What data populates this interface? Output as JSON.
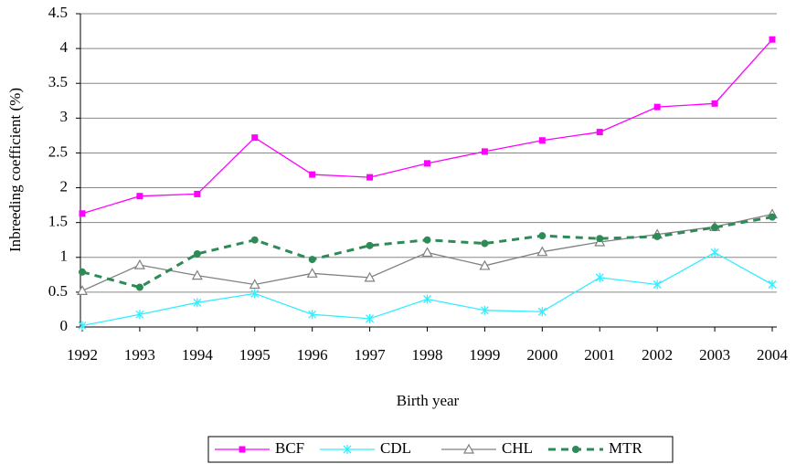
{
  "chart_data": {
    "type": "line",
    "x_label": "Birth year",
    "y_label": "Inbreeding coefficient (%)",
    "categories": [
      "1992",
      "1993",
      "1994",
      "1995",
      "1996",
      "1997",
      "1998",
      "1999",
      "2000",
      "2001",
      "2002",
      "2003",
      "2004"
    ],
    "ylim": [
      0,
      4.5
    ],
    "yticks": [
      0,
      0.5,
      1,
      1.5,
      2,
      2.5,
      3,
      3.5,
      4,
      4.5
    ],
    "grid": true,
    "legend": "bottom",
    "series": [
      {
        "name": "BCF",
        "color": "#ff00ff",
        "marker": "square",
        "dashed": false,
        "values": [
          1.63,
          1.88,
          1.91,
          2.72,
          2.19,
          2.15,
          2.35,
          2.52,
          2.68,
          2.8,
          3.16,
          3.21,
          4.13
        ]
      },
      {
        "name": "CDL",
        "color": "#33eeff",
        "marker": "asterisk",
        "dashed": false,
        "values": [
          0.02,
          0.18,
          0.35,
          0.48,
          0.18,
          0.12,
          0.4,
          0.24,
          0.22,
          0.71,
          0.61,
          1.07,
          0.61
        ]
      },
      {
        "name": "CHL",
        "color": "#808080",
        "marker": "triangle",
        "dashed": false,
        "values": [
          0.52,
          0.89,
          0.74,
          0.61,
          0.77,
          0.71,
          1.07,
          0.88,
          1.08,
          1.22,
          1.33,
          1.44,
          1.62
        ]
      },
      {
        "name": "MTR",
        "color": "#2e8b57",
        "marker": "circle",
        "dashed": true,
        "values": [
          0.79,
          0.57,
          1.05,
          1.25,
          0.97,
          1.17,
          1.25,
          1.2,
          1.31,
          1.27,
          1.3,
          1.43,
          1.58
        ]
      }
    ]
  }
}
